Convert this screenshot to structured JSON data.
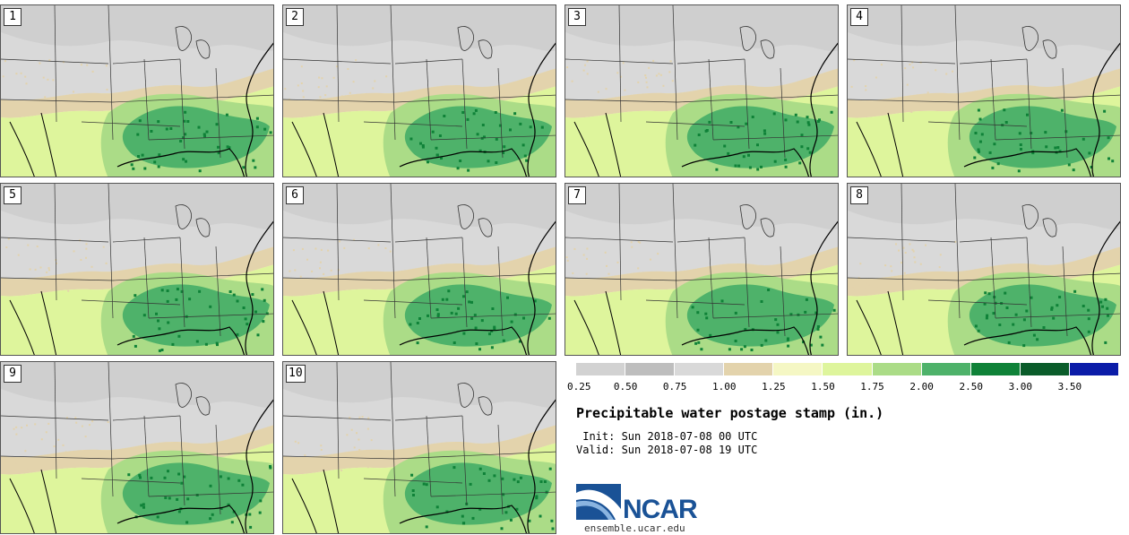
{
  "stamps": [
    "1",
    "2",
    "3",
    "4",
    "5",
    "6",
    "7",
    "8",
    "9",
    "10"
  ],
  "legend": {
    "colors": [
      "#d2d2d2",
      "#bebebe",
      "#d9d9d9",
      "#e3d3ac",
      "#f5f7c4",
      "#def59c",
      "#abdc87",
      "#4eb26a",
      "#0f8238",
      "#0a5c2a",
      "#0b1ca8"
    ],
    "ticks": [
      "0.25",
      "0.50",
      "0.75",
      "1.00",
      "1.25",
      "1.50",
      "1.75",
      "2.00",
      "2.50",
      "3.00",
      "3.50"
    ]
  },
  "title": "Precipitable water postage stamp (in.)",
  "init_label": " Init: Sun 2018-07-08 00 UTC",
  "valid_label": "Valid: Sun 2018-07-08 19 UTC",
  "logo": {
    "name": "NCAR",
    "url": "ensemble.ucar.edu"
  }
}
